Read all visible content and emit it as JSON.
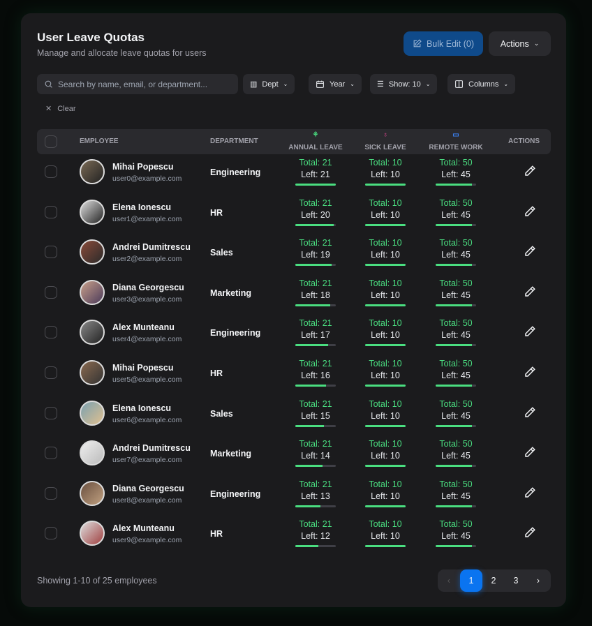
{
  "header": {
    "title": "User Leave Quotas",
    "subtitle": "Manage and allocate leave quotas for users",
    "bulk_edit": "Bulk Edit (0)",
    "actions": "Actions"
  },
  "filters": {
    "search_placeholder": "Search by name, email, or department...",
    "dept": "Dept",
    "year": "Year",
    "show": "Show: 10",
    "columns": "Columns",
    "clear": "Clear"
  },
  "table": {
    "headers": {
      "employee": "EMPLOYEE",
      "department": "DEPARTMENT",
      "annual": "ANNUAL LEAVE",
      "sick": "SICK LEAVE",
      "remote": "REMOTE WORK",
      "actions": "ACTIONS"
    },
    "icon_colors": {
      "annual": "#4ade80",
      "sick": "#ec4899",
      "remote": "#3b82f6"
    },
    "rows": [
      {
        "name": "Mihai Popescu",
        "email": "user0@example.com",
        "dept": "Engineering",
        "annual_total": "Total: 21",
        "annual_left": "Left: 21",
        "annual_fill": 1,
        "sick_total": "Total: 10",
        "sick_left": "Left: 10",
        "sick_fill": 1,
        "remote_total": "Total: 50",
        "remote_left": "Left: 45",
        "remote_fill": 0.9
      },
      {
        "name": "Elena Ionescu",
        "email": "user1@example.com",
        "dept": "HR",
        "annual_total": "Total: 21",
        "annual_left": "Left: 20",
        "annual_fill": 0.952,
        "sick_total": "Total: 10",
        "sick_left": "Left: 10",
        "sick_fill": 1,
        "remote_total": "Total: 50",
        "remote_left": "Left: 45",
        "remote_fill": 0.9
      },
      {
        "name": "Andrei Dumitrescu",
        "email": "user2@example.com",
        "dept": "Sales",
        "annual_total": "Total: 21",
        "annual_left": "Left: 19",
        "annual_fill": 0.905,
        "sick_total": "Total: 10",
        "sick_left": "Left: 10",
        "sick_fill": 1,
        "remote_total": "Total: 50",
        "remote_left": "Left: 45",
        "remote_fill": 0.9
      },
      {
        "name": "Diana Georgescu",
        "email": "user3@example.com",
        "dept": "Marketing",
        "annual_total": "Total: 21",
        "annual_left": "Left: 18",
        "annual_fill": 0.857,
        "sick_total": "Total: 10",
        "sick_left": "Left: 10",
        "sick_fill": 1,
        "remote_total": "Total: 50",
        "remote_left": "Left: 45",
        "remote_fill": 0.9
      },
      {
        "name": "Alex Munteanu",
        "email": "user4@example.com",
        "dept": "Engineering",
        "annual_total": "Total: 21",
        "annual_left": "Left: 17",
        "annual_fill": 0.81,
        "sick_total": "Total: 10",
        "sick_left": "Left: 10",
        "sick_fill": 1,
        "remote_total": "Total: 50",
        "remote_left": "Left: 45",
        "remote_fill": 0.9
      },
      {
        "name": "Mihai Popescu",
        "email": "user5@example.com",
        "dept": "HR",
        "annual_total": "Total: 21",
        "annual_left": "Left: 16",
        "annual_fill": 0.762,
        "sick_total": "Total: 10",
        "sick_left": "Left: 10",
        "sick_fill": 1,
        "remote_total": "Total: 50",
        "remote_left": "Left: 45",
        "remote_fill": 0.9
      },
      {
        "name": "Elena Ionescu",
        "email": "user6@example.com",
        "dept": "Sales",
        "annual_total": "Total: 21",
        "annual_left": "Left: 15",
        "annual_fill": 0.714,
        "sick_total": "Total: 10",
        "sick_left": "Left: 10",
        "sick_fill": 1,
        "remote_total": "Total: 50",
        "remote_left": "Left: 45",
        "remote_fill": 0.9
      },
      {
        "name": "Andrei Dumitrescu",
        "email": "user7@example.com",
        "dept": "Marketing",
        "annual_total": "Total: 21",
        "annual_left": "Left: 14",
        "annual_fill": 0.667,
        "sick_total": "Total: 10",
        "sick_left": "Left: 10",
        "sick_fill": 1,
        "remote_total": "Total: 50",
        "remote_left": "Left: 45",
        "remote_fill": 0.9
      },
      {
        "name": "Diana Georgescu",
        "email": "user8@example.com",
        "dept": "Engineering",
        "annual_total": "Total: 21",
        "annual_left": "Left: 13",
        "annual_fill": 0.619,
        "sick_total": "Total: 10",
        "sick_left": "Left: 10",
        "sick_fill": 1,
        "remote_total": "Total: 50",
        "remote_left": "Left: 45",
        "remote_fill": 0.9
      },
      {
        "name": "Alex Munteanu",
        "email": "user9@example.com",
        "dept": "HR",
        "annual_total": "Total: 21",
        "annual_left": "Left: 12",
        "annual_fill": 0.571,
        "sick_total": "Total: 10",
        "sick_left": "Left: 10",
        "sick_fill": 1,
        "remote_total": "Total: 50",
        "remote_left": "Left: 45",
        "remote_fill": 0.9
      }
    ]
  },
  "footer": {
    "showing": "Showing 1-10 of 25 employees",
    "pages": [
      "1",
      "2",
      "3"
    ],
    "current_page": "1",
    "prev": "‹",
    "next": "›"
  }
}
